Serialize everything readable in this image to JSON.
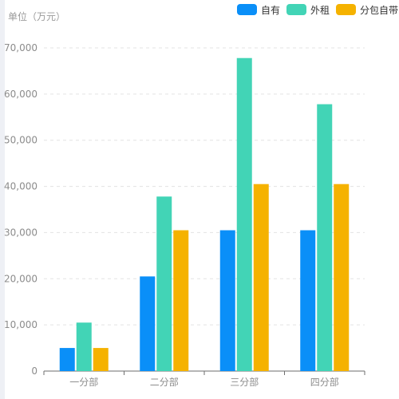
{
  "chart_data": {
    "type": "bar",
    "unit_label": "单位（万元）",
    "categories": [
      "一分部",
      "二分部",
      "三分部",
      "四分部"
    ],
    "series": [
      {
        "name": "自有",
        "color": "#0a8ff8",
        "values": [
          5000,
          20500,
          30500,
          30500
        ]
      },
      {
        "name": "外租",
        "color": "#42d4b6",
        "values": [
          10500,
          37800,
          67800,
          57800
        ]
      },
      {
        "name": "分包自带",
        "color": "#f5b200",
        "values": [
          5000,
          30500,
          40500,
          40500
        ]
      }
    ],
    "y_ticks": [
      "0",
      "10,000",
      "20,000",
      "30,000",
      "40,000",
      "50,000",
      "60,000",
      "70,000"
    ],
    "ylim": [
      0,
      70000
    ],
    "grid": true,
    "legend_position": "top-right"
  }
}
